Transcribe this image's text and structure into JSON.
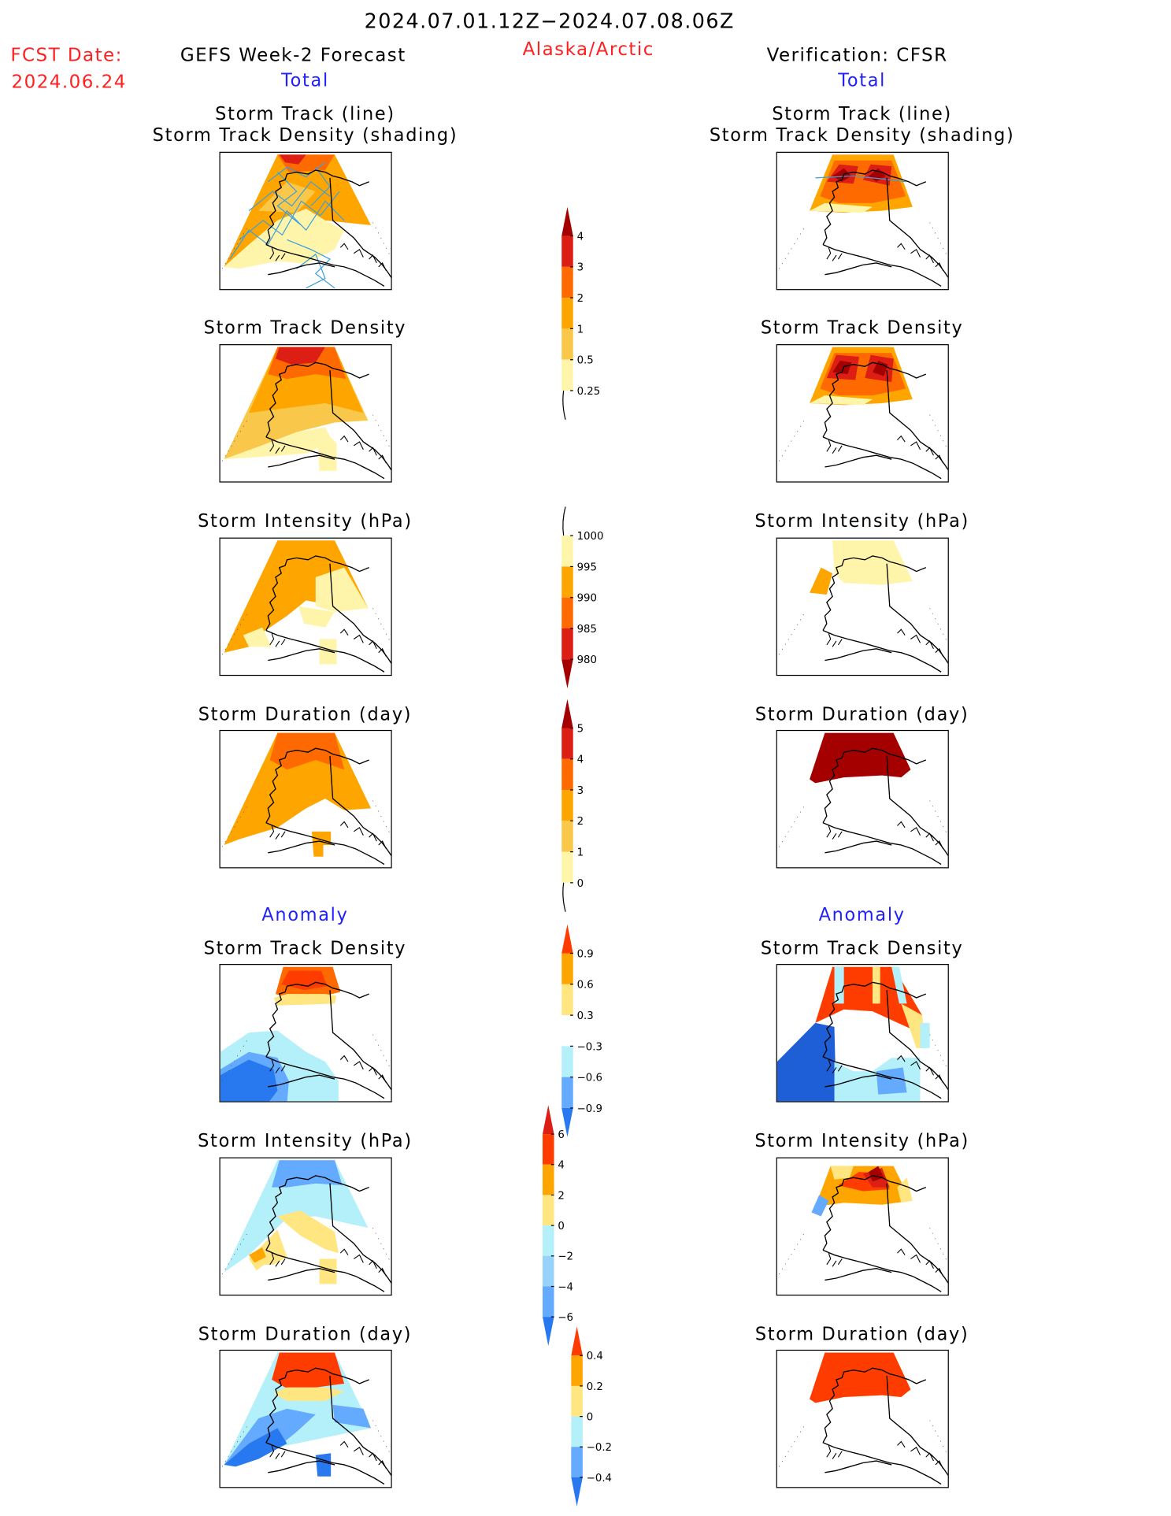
{
  "header": {
    "period": "2024.07.01.12Z−2024.07.08.06Z",
    "region": "Alaska/Arctic",
    "fcst_label": "FCST Date:",
    "fcst_date": "2024.06.24",
    "left_title": "GEFS Week-2 Forecast",
    "right_title": "Verification: CFSR"
  },
  "sections": {
    "total": "Total",
    "anomaly": "Anomaly"
  },
  "panel_titles": {
    "track_line": "Storm Track (line)",
    "track_shading": "Storm Track Density (shading)",
    "density": "Storm Track Density",
    "intensity": "Storm Intensity (hPa)",
    "duration": "Storm Duration (day)"
  },
  "colorbars": {
    "total_density": {
      "labels": [
        "4",
        "3",
        "2",
        "1",
        "0.5",
        "0.25"
      ],
      "colors": [
        "#a50000",
        "#dc1e14",
        "#ff6a00",
        "#ffa500",
        "#f9c84a",
        "#fff5aa"
      ]
    },
    "total_intensity": {
      "labels": [
        "1000",
        "995",
        "990",
        "985",
        "980"
      ],
      "colors": [
        "#fff5aa",
        "#ffa500",
        "#ff6a00",
        "#dc1e14",
        "#a50000"
      ]
    },
    "total_duration": {
      "labels": [
        "5",
        "4",
        "3",
        "2",
        "1",
        "0"
      ],
      "colors": [
        "#a50000",
        "#dc1e14",
        "#ff6a00",
        "#ffa500",
        "#f9c84a",
        "#fff5aa"
      ]
    },
    "anom_density": {
      "labels": [
        "0.9",
        "0.6",
        "0.3",
        "−0.3",
        "−0.6",
        "−0.9"
      ],
      "colors": [
        "#ff3c00",
        "#ffa500",
        "#ffe680",
        "#ffffff",
        "#b4f0fa",
        "#64aaff",
        "#2878f0"
      ]
    },
    "anom_intensity": {
      "labels": [
        "6",
        "4",
        "2",
        "0",
        "−2",
        "−4",
        "−6"
      ],
      "colors": [
        "#dc1e14",
        "#ff3c00",
        "#ffa500",
        "#ffe680",
        "#b4f0fa",
        "#96d2fa",
        "#64aaff",
        "#2878f0"
      ]
    },
    "anom_duration": {
      "labels": [
        "0.4",
        "0.2",
        "0",
        "−0.2",
        "−0.4"
      ],
      "colors": [
        "#ff3c00",
        "#ffa500",
        "#ffe680",
        "#b4f0fa",
        "#64aaff",
        "#2878f0"
      ]
    }
  },
  "colors": {
    "title_red": "#ff2020",
    "section_blue": "#2020ff",
    "track_line": "#3ca0dc"
  }
}
